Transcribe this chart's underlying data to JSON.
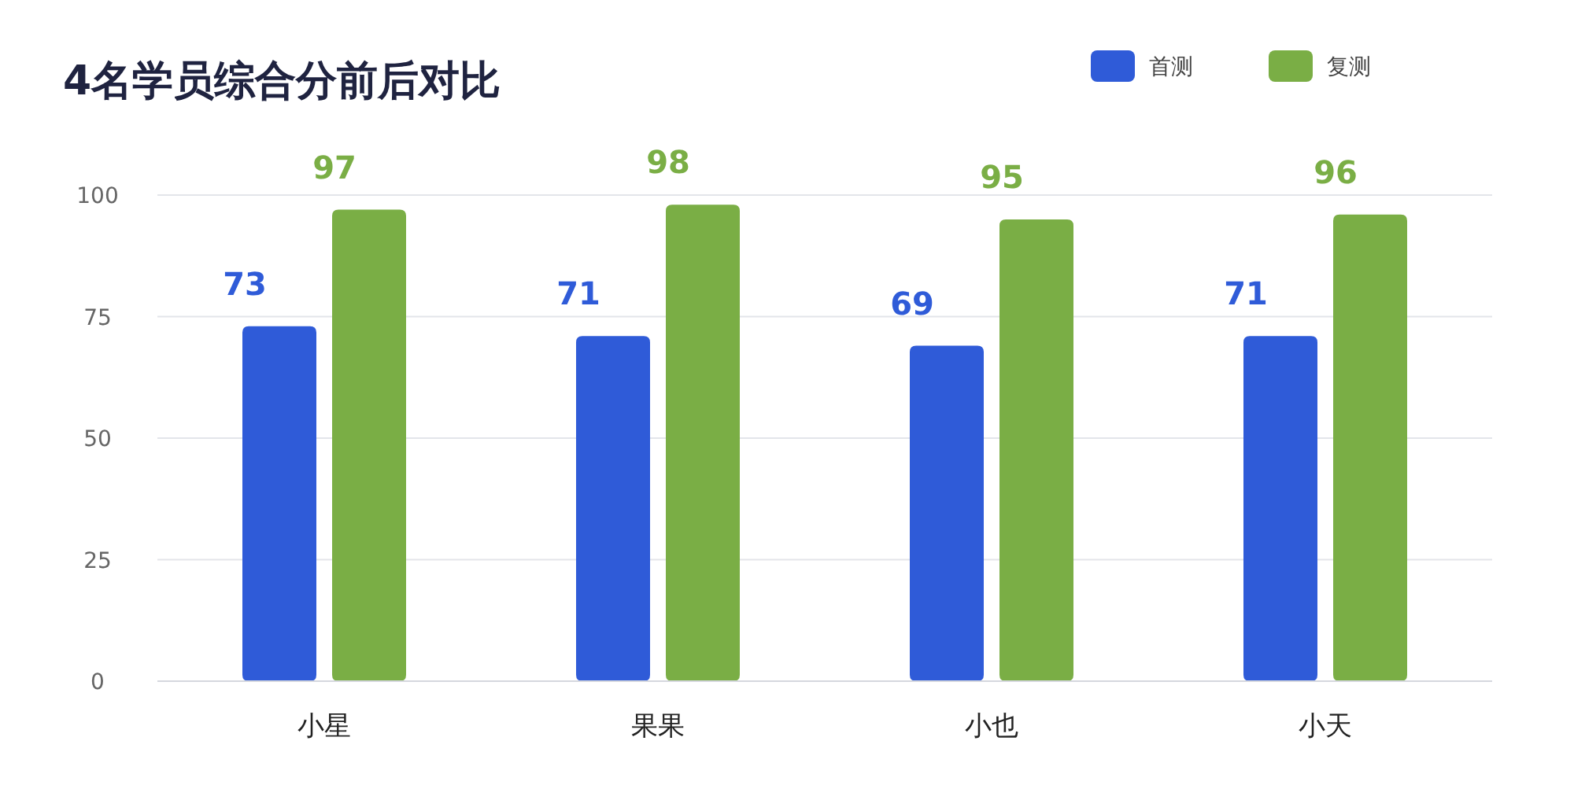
{
  "chart_data": {
    "type": "bar",
    "title": "4名学员综合分前后对比",
    "categories": [
      "小星",
      "果果",
      "小也",
      "小天"
    ],
    "series": [
      {
        "name": "首测",
        "color": "#2f5bd8",
        "values": [
          73,
          71,
          69,
          71
        ]
      },
      {
        "name": "复测",
        "color": "#7aae45",
        "values": [
          97,
          98,
          95,
          96
        ]
      }
    ],
    "ylim": [
      0,
      100
    ],
    "yticks": [
      0,
      25,
      50,
      75,
      100
    ],
    "grid": "y",
    "legend": "top right",
    "data_labels": true
  }
}
